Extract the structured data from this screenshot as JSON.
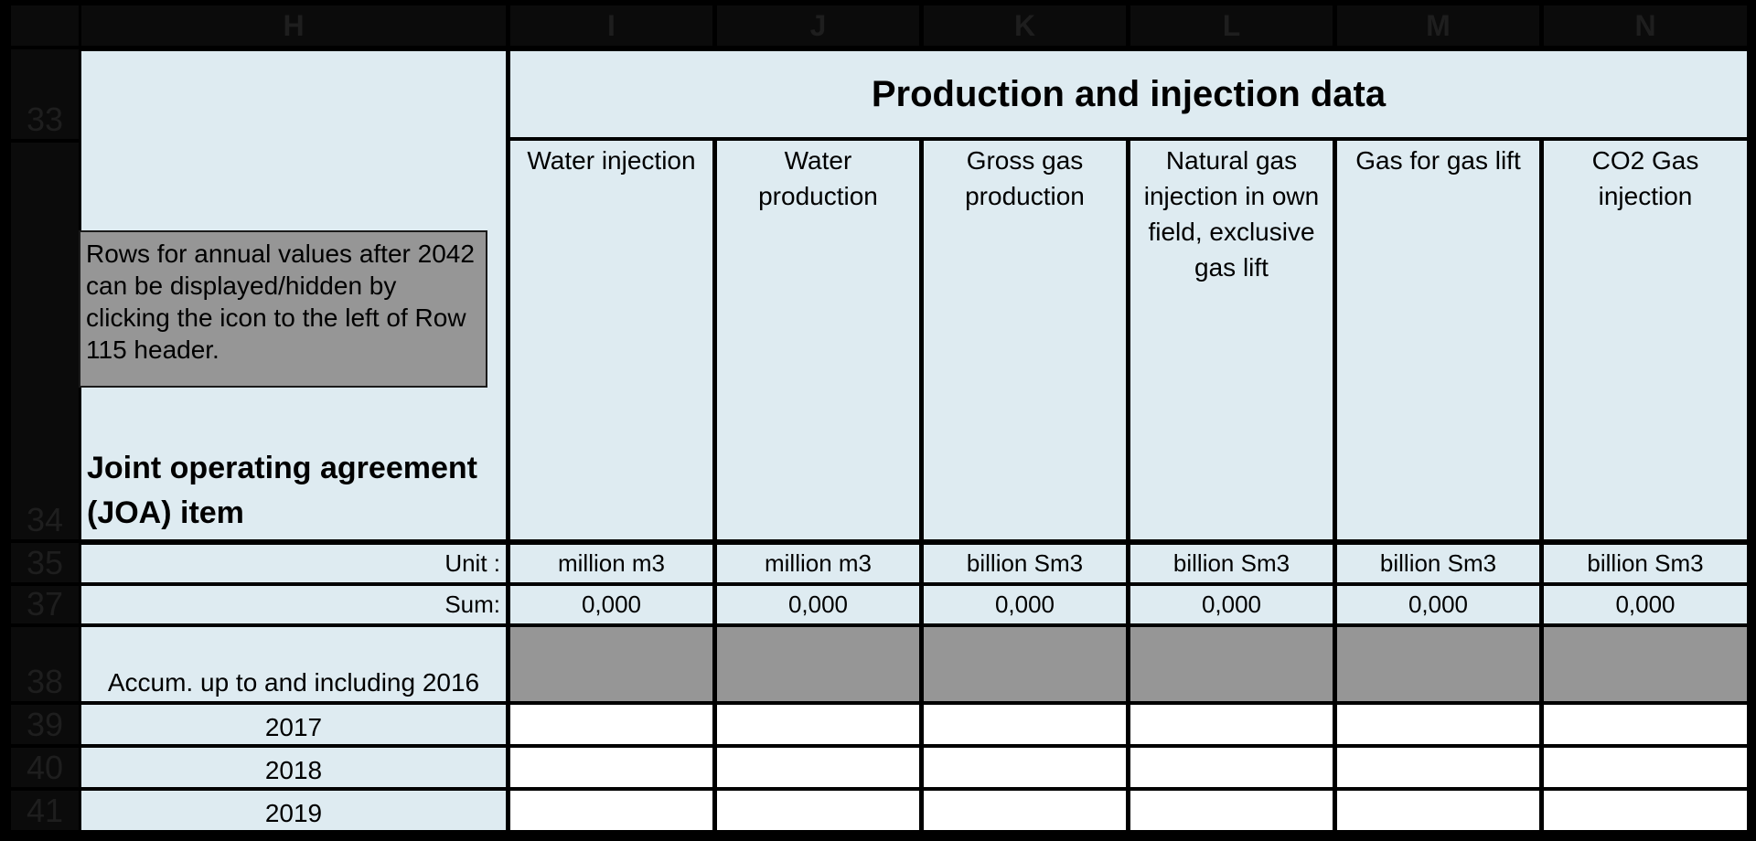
{
  "sheet": {
    "columns": [
      "H",
      "I",
      "J",
      "K",
      "L",
      "M",
      "N"
    ],
    "rows": [
      "33",
      "34",
      "35",
      "37",
      "38",
      "39",
      "40",
      "41"
    ],
    "title": "Production and injection data",
    "note": "Rows for annual values after 2042 can be displayed/hidden by clicking the icon to the left of Row 115 header.",
    "joa_label": "Joint operating agreement (JOA)  item",
    "column_heads": [
      "Water injection",
      "Water production",
      "Gross gas production",
      "Natural gas injection in own field, exclusive gas lift",
      "Gas for gas lift",
      "CO2 Gas injection"
    ],
    "unit_label": "Unit :",
    "units": [
      "million m3",
      "million m3",
      "billion Sm3",
      "billion Sm3",
      "billion Sm3",
      "billion Sm3"
    ],
    "sum_label": "Sum:",
    "sums": [
      "0,000",
      "0,000",
      "0,000",
      "0,000",
      "0,000",
      "0,000"
    ],
    "accum_label": "Accum. up to and including 2016",
    "years": [
      "2017",
      "2018",
      "2019"
    ],
    "colors": {
      "light": "#deebf1",
      "grey": "#969696",
      "header": "#0b0b0b",
      "grid": "#000000"
    }
  }
}
